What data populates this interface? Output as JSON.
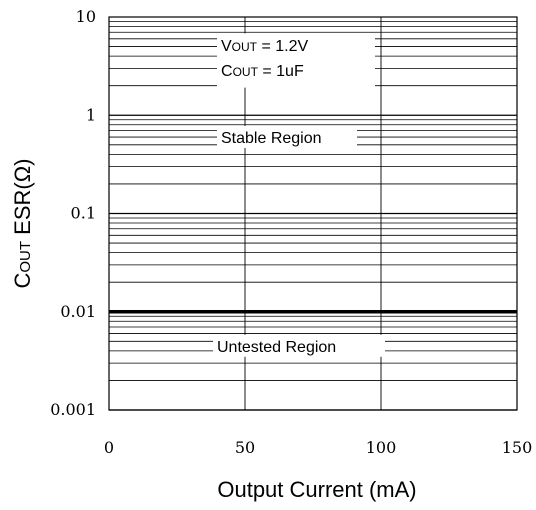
{
  "chart_data": {
    "type": "line",
    "x_axis": {
      "label": "Output Current (mA)",
      "range": [
        0,
        150
      ],
      "ticks": [
        0,
        50,
        100,
        150
      ],
      "tick_labels": [
        "0",
        "50",
        "100",
        "150"
      ]
    },
    "y_axis": {
      "label_main": "C",
      "label_sub": "OUT",
      "label_rest": " ESR(Ω)",
      "scale": "log",
      "range": [
        0.001,
        10
      ],
      "ticks": [
        10,
        1,
        0.1,
        0.01,
        0.001
      ],
      "tick_labels": [
        "10",
        "1",
        "0.1",
        "0.01",
        "0.001"
      ]
    },
    "grid": true,
    "series": [
      {
        "x": [
          0,
          150
        ],
        "y": [
          0.01,
          0.01
        ]
      }
    ],
    "annotations": {
      "vout": {
        "main": "V",
        "sub": "OUT",
        "rest": " = 1.2V"
      },
      "cout": {
        "main": "C",
        "sub": "OUT",
        "rest": " = 1uF"
      },
      "stable": "Stable Region",
      "untested": "Untested Region"
    }
  }
}
